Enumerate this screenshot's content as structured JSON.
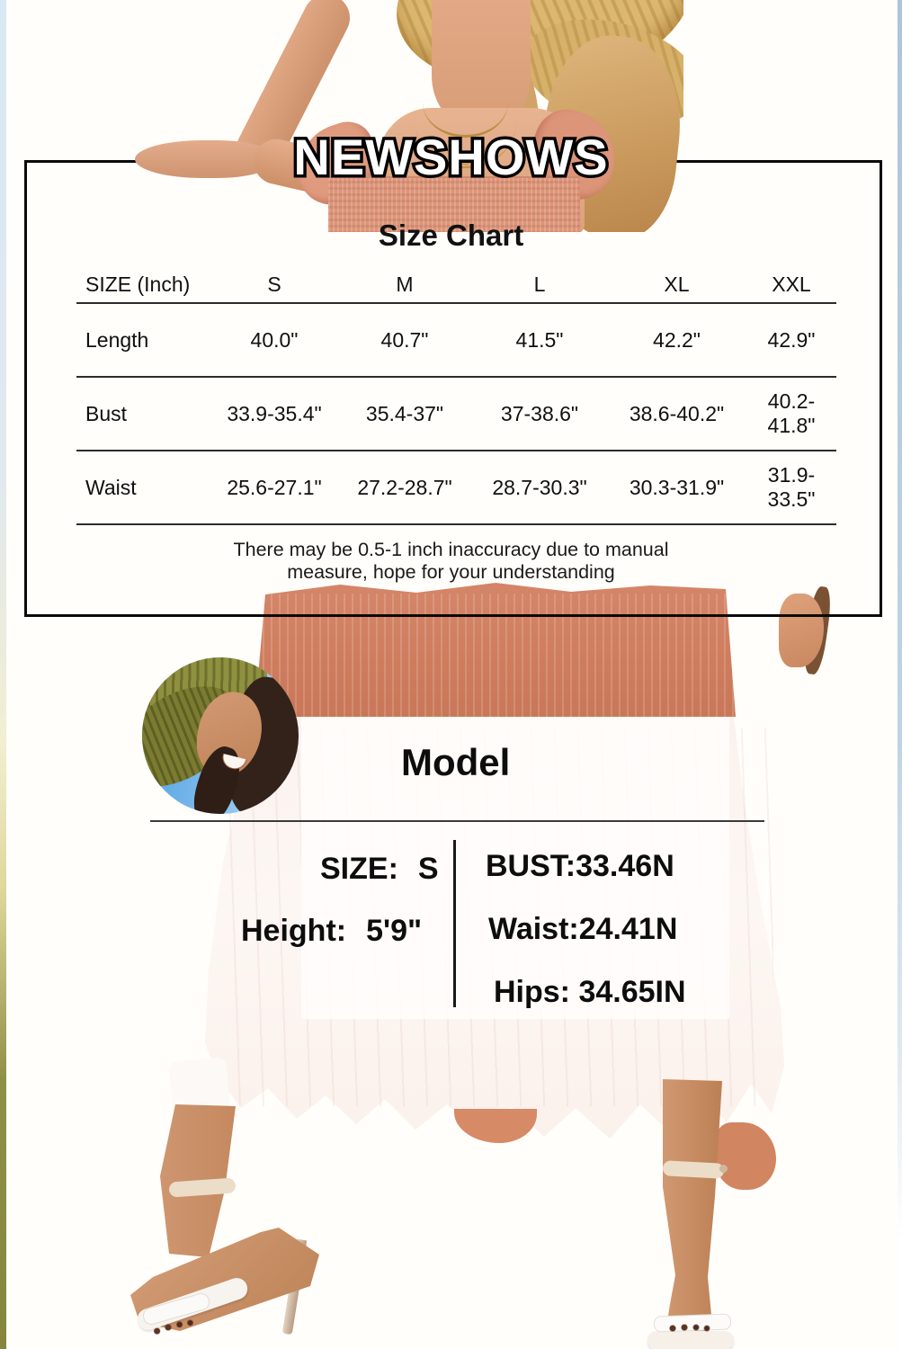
{
  "brand": {
    "logo": "NEWSHOWS"
  },
  "colors": {
    "dress_salmon": "#cf7d5e",
    "skirt_cream": "#fbf2ee",
    "frame_black": "#0a0a0a",
    "edge_blue": "#aac6dd",
    "edge_olive": "#85863e"
  },
  "size_chart": {
    "title": "Size Chart",
    "table": {
      "header": [
        "SIZE (Inch)",
        "S",
        "M",
        "L",
        "XL",
        "XXL"
      ],
      "rows": [
        {
          "label": "Length",
          "values": [
            "40.0\"",
            "40.7\"",
            "41.5\"",
            "42.2\"",
            "42.9\""
          ]
        },
        {
          "label": "Bust",
          "values": [
            "33.9-35.4\"",
            "35.4-37\"",
            "37-38.6\"",
            "38.6-40.2\"",
            "40.2-41.8\""
          ]
        },
        {
          "label": "Waist",
          "values": [
            "25.6-27.1\"",
            "27.2-28.7\"",
            "28.7-30.3\"",
            "30.3-31.9\"",
            "31.9-33.5\""
          ]
        }
      ]
    },
    "disclaimer_line1": "There may be 0.5-1 inch inaccuracy due to manual",
    "disclaimer_line2": "measure, hope for your understanding"
  },
  "model_info": {
    "title": "Model",
    "size_label": "SIZE:",
    "size_value": "S",
    "height_label": "Height:",
    "height_value": "5'9\"",
    "bust": "BUST:33.46N",
    "waist": "Waist:24.41N",
    "hips": "Hips: 34.65IN"
  }
}
